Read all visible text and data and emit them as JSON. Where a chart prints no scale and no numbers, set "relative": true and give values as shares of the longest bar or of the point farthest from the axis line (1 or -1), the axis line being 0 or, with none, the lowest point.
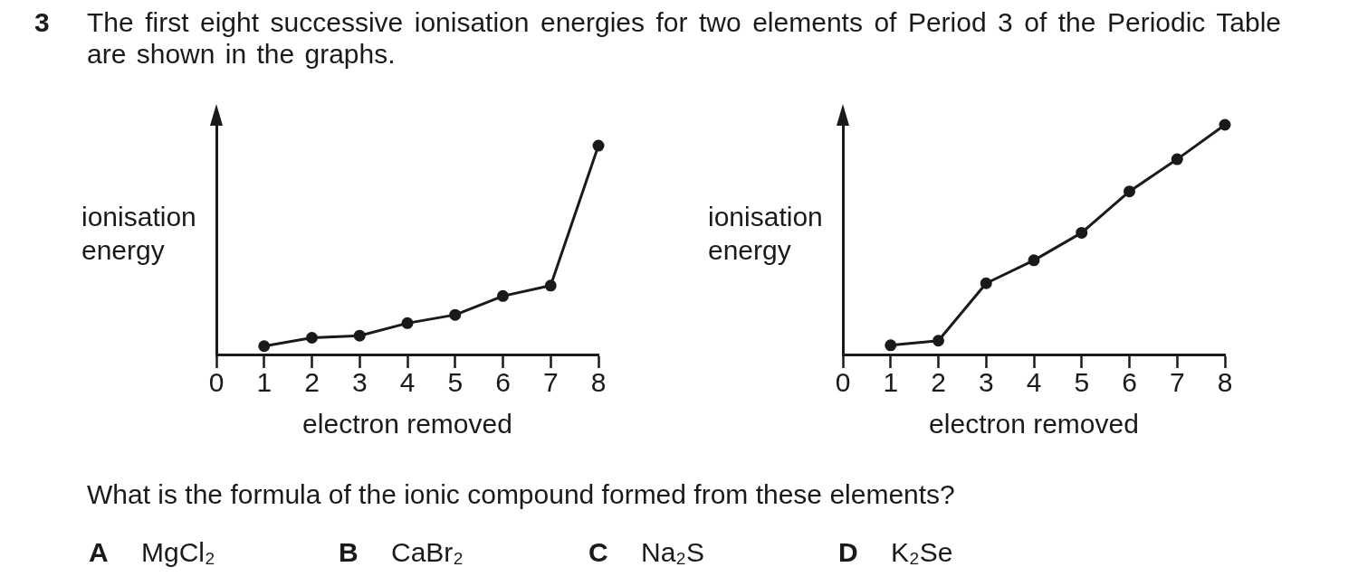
{
  "chart_data": [
    {
      "type": "other",
      "title": "The first eight successive ionisation energies for two elements of Period 3 of the Periodic Table are shown in the graphs.",
      "annotations": [
        "3"
      ]
    },
    {
      "type": "line",
      "x": [
        1,
        2,
        3,
        4,
        5,
        6,
        7,
        8
      ],
      "values": [
        0.04,
        0.08,
        0.09,
        0.15,
        0.19,
        0.28,
        0.33,
        1
      ],
      "relative": true,
      "color": "#1a1a1a",
      "marker": "circle",
      "xlim": [
        0,
        8
      ],
      "xticks": [
        0,
        1,
        2,
        3,
        4,
        5,
        6,
        7,
        8
      ],
      "xlabel": "electron removed",
      "ylabel": "ionisation energy"
    },
    {
      "type": "line",
      "x": [
        1,
        2,
        3,
        4,
        5,
        6,
        7,
        8
      ],
      "values": [
        0.04,
        0.06,
        0.31,
        0.41,
        0.53,
        0.71,
        0.85,
        1
      ],
      "relative": true,
      "color": "#1a1a1a",
      "marker": "circle",
      "xlim": [
        0,
        8
      ],
      "xticks": [
        0,
        1,
        2,
        3,
        4,
        5,
        6,
        7,
        8
      ],
      "xlabel": "electron removed",
      "ylabel": "ionisation energy"
    },
    {
      "type": "other",
      "title": "What is the formula of the ionic compound formed from these elements?",
      "annotations": [
        "A",
        "MgCl₂",
        "B",
        "CaBr₂",
        "C",
        "Na₂S",
        "D",
        "K₂Se"
      ]
    }
  ]
}
